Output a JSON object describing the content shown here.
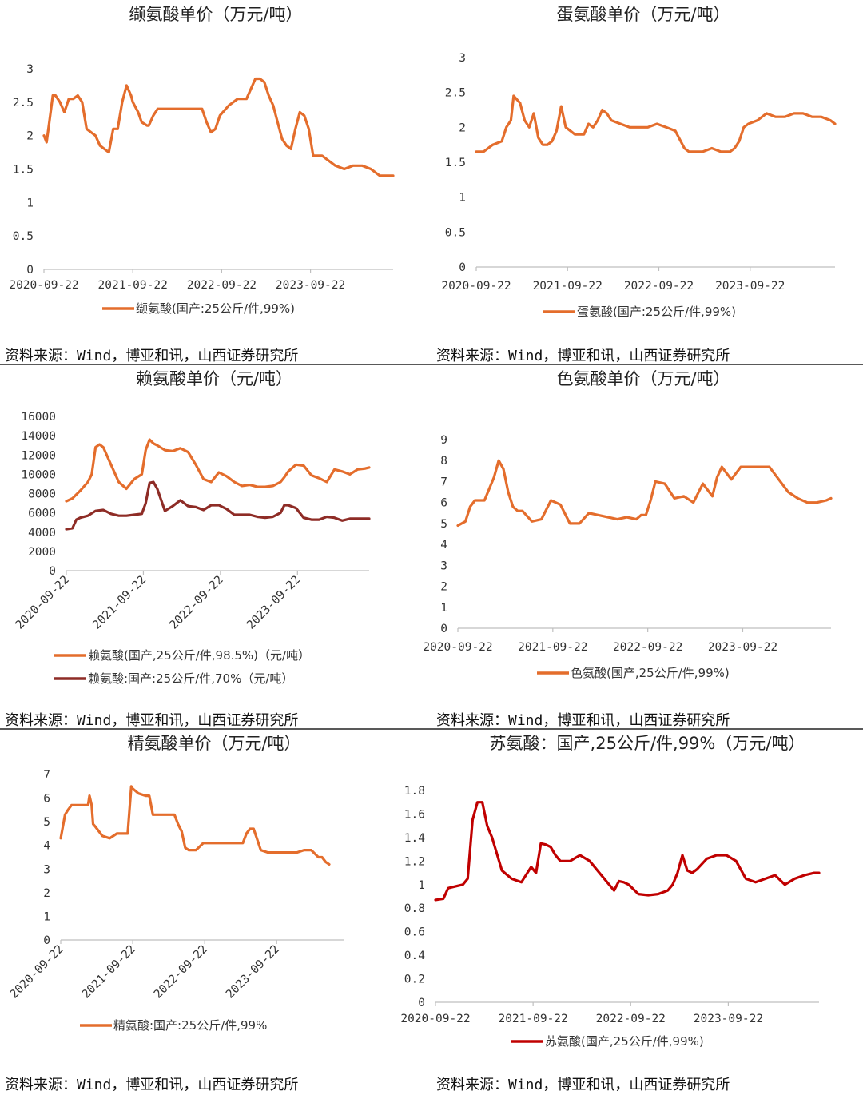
{
  "source_text": "资料来源：Wind，博亚和讯，山西证券研究所",
  "colors": {
    "orange": "#E46D2C",
    "darkred": "#8E2C26",
    "red": "#C00000"
  },
  "chart_data": [
    {
      "id": "valine",
      "type": "line",
      "title": "缬氨酸单价（万元/吨）",
      "xlabel": "",
      "ylabel": "",
      "x_ticks": [
        "2020-09-22",
        "2021-09-22",
        "2022-09-22",
        "2023-09-22"
      ],
      "y_ticks": [
        "0",
        "0.5",
        "1",
        "1.5",
        "2",
        "2.5",
        "3"
      ],
      "ylim": [
        0,
        3
      ],
      "x_range": [
        2020.72,
        2024.65
      ],
      "legend_placement": "bottom",
      "grid": false,
      "series": [
        {
          "name": "缬氨酸(国产:25公斤/件,99%)",
          "color": "#E46D2C",
          "x": [
            2020.72,
            2020.75,
            2020.78,
            2020.82,
            2020.85,
            2020.9,
            2020.95,
            2021.0,
            2021.05,
            2021.1,
            2021.15,
            2021.2,
            2021.25,
            2021.3,
            2021.35,
            2021.4,
            2021.45,
            2021.5,
            2021.55,
            2021.6,
            2021.65,
            2021.7,
            2021.72,
            2021.78,
            2021.82,
            2021.88,
            2021.9,
            2021.95,
            2022.0,
            2022.05,
            2022.1,
            2022.15,
            2022.2,
            2022.3,
            2022.4,
            2022.5,
            2022.55,
            2022.6,
            2022.65,
            2022.7,
            2022.8,
            2022.9,
            2023.0,
            2023.1,
            2023.15,
            2023.2,
            2023.25,
            2023.3,
            2023.35,
            2023.4,
            2023.45,
            2023.5,
            2023.55,
            2023.6,
            2023.65,
            2023.7,
            2023.75,
            2023.8,
            2023.85,
            2023.9,
            2024.0,
            2024.1,
            2024.2,
            2024.3,
            2024.4,
            2024.5,
            2024.65
          ],
          "y": [
            2.0,
            1.9,
            2.2,
            2.6,
            2.6,
            2.5,
            2.35,
            2.55,
            2.55,
            2.6,
            2.5,
            2.1,
            2.05,
            2.0,
            1.85,
            1.8,
            1.75,
            2.1,
            2.1,
            2.5,
            2.75,
            2.6,
            2.5,
            2.35,
            2.2,
            2.15,
            2.15,
            2.3,
            2.4,
            2.4,
            2.4,
            2.4,
            2.4,
            2.4,
            2.4,
            2.4,
            2.2,
            2.05,
            2.1,
            2.3,
            2.45,
            2.55,
            2.55,
            2.85,
            2.85,
            2.8,
            2.6,
            2.45,
            2.2,
            1.95,
            1.85,
            1.8,
            2.1,
            2.35,
            2.3,
            2.1,
            1.7,
            1.7,
            1.7,
            1.65,
            1.55,
            1.5,
            1.55,
            1.55,
            1.5,
            1.4,
            1.4
          ]
        }
      ]
    },
    {
      "id": "methionine",
      "type": "line",
      "title": "蛋氨酸单价（万元/吨）",
      "xlabel": "",
      "ylabel": "",
      "x_ticks": [
        "2020-09-22",
        "2021-09-22",
        "2022-09-22",
        "2023-09-22"
      ],
      "y_ticks": [
        "0",
        "0.5",
        "1",
        "1.5",
        "2",
        "2.5",
        "3"
      ],
      "ylim": [
        0,
        3
      ],
      "x_range": [
        2020.72,
        2024.65
      ],
      "legend_placement": "bottom",
      "grid": false,
      "series": [
        {
          "name": "蛋氨酸(国产:25公斤/件,99%)",
          "color": "#E46D2C",
          "x": [
            2020.72,
            2020.8,
            2020.9,
            2021.0,
            2021.05,
            2021.1,
            2021.13,
            2021.2,
            2021.25,
            2021.3,
            2021.35,
            2021.4,
            2021.45,
            2021.5,
            2021.55,
            2021.6,
            2021.65,
            2021.7,
            2021.75,
            2021.8,
            2021.85,
            2021.9,
            2021.95,
            2022.0,
            2022.05,
            2022.1,
            2022.15,
            2022.2,
            2022.3,
            2022.4,
            2022.5,
            2022.6,
            2022.7,
            2022.8,
            2022.9,
            2023.0,
            2023.05,
            2023.1,
            2023.2,
            2023.3,
            2023.4,
            2023.5,
            2023.55,
            2023.6,
            2023.65,
            2023.7,
            2023.8,
            2023.9,
            2024.0,
            2024.1,
            2024.2,
            2024.3,
            2024.4,
            2024.5,
            2024.6,
            2024.65
          ],
          "y": [
            1.65,
            1.65,
            1.75,
            1.8,
            2.0,
            2.1,
            2.45,
            2.35,
            2.1,
            2.0,
            2.2,
            1.85,
            1.75,
            1.75,
            1.8,
            1.95,
            2.3,
            2.0,
            1.95,
            1.9,
            1.9,
            1.9,
            2.05,
            2.0,
            2.1,
            2.25,
            2.2,
            2.1,
            2.05,
            2.0,
            2.0,
            2.0,
            2.05,
            2.0,
            1.95,
            1.7,
            1.65,
            1.65,
            1.65,
            1.7,
            1.65,
            1.65,
            1.7,
            1.8,
            2.0,
            2.05,
            2.1,
            2.2,
            2.15,
            2.15,
            2.2,
            2.2,
            2.15,
            2.15,
            2.1,
            2.05
          ]
        }
      ]
    },
    {
      "id": "lysine",
      "type": "line",
      "title": "赖氨酸单价（元/吨）",
      "xlabel": "",
      "ylabel": "",
      "x_ticks": [
        "2020-09-22",
        "2021-09-22",
        "2022-09-22",
        "2023-09-22"
      ],
      "y_ticks": [
        "0",
        "2000",
        "4000",
        "6000",
        "8000",
        "10000",
        "12000",
        "14000",
        "16000"
      ],
      "ylim": [
        0,
        16000
      ],
      "x_range": [
        2020.72,
        2024.65
      ],
      "legend_placement": "bottom",
      "grid": false,
      "series": [
        {
          "name": "赖氨酸(国产,25公斤/件,98.5%)（元/吨）",
          "color": "#E46D2C",
          "x": [
            2020.72,
            2020.8,
            2020.9,
            2021.0,
            2021.05,
            2021.1,
            2021.15,
            2021.2,
            2021.3,
            2021.4,
            2021.5,
            2021.6,
            2021.7,
            2021.75,
            2021.8,
            2021.85,
            2021.9,
            2022.0,
            2022.1,
            2022.2,
            2022.3,
            2022.4,
            2022.5,
            2022.6,
            2022.7,
            2022.8,
            2022.9,
            2023.0,
            2023.1,
            2023.2,
            2023.3,
            2023.4,
            2023.5,
            2023.55,
            2023.6,
            2023.7,
            2023.8,
            2023.9,
            2024.0,
            2024.1,
            2024.2,
            2024.3,
            2024.4,
            2024.5,
            2024.6,
            2024.65
          ],
          "y": [
            7200,
            7500,
            8300,
            9200,
            10000,
            12800,
            13100,
            12800,
            11000,
            9200,
            8500,
            9500,
            10000,
            12500,
            13600,
            13200,
            13000,
            12500,
            12400,
            12700,
            12300,
            11000,
            9500,
            9200,
            10200,
            9800,
            9200,
            8800,
            8900,
            8700,
            8700,
            8800,
            9200,
            9700,
            10300,
            11000,
            10900,
            9900,
            9600,
            9200,
            10500,
            10300,
            10000,
            10500,
            10600,
            10700
          ]
        },
        {
          "name": "赖氨酸:国产:25公斤/件,70%（元/吨）",
          "color": "#8E2C26",
          "x": [
            2020.72,
            2020.8,
            2020.85,
            2020.9,
            2021.0,
            2021.1,
            2021.2,
            2021.3,
            2021.4,
            2021.5,
            2021.6,
            2021.7,
            2021.75,
            2021.8,
            2021.85,
            2021.9,
            2022.0,
            2022.1,
            2022.2,
            2022.3,
            2022.4,
            2022.5,
            2022.6,
            2022.7,
            2022.8,
            2022.9,
            2023.0,
            2023.1,
            2023.2,
            2023.3,
            2023.4,
            2023.5,
            2023.55,
            2023.6,
            2023.7,
            2023.8,
            2023.9,
            2024.0,
            2024.1,
            2024.2,
            2024.3,
            2024.4,
            2024.5,
            2024.65
          ],
          "y": [
            4300,
            4400,
            5300,
            5500,
            5700,
            6200,
            6300,
            5900,
            5700,
            5700,
            5800,
            5900,
            7000,
            9100,
            9200,
            8500,
            6200,
            6700,
            7300,
            6700,
            6600,
            6300,
            6800,
            6800,
            6400,
            5800,
            5800,
            5800,
            5600,
            5500,
            5600,
            6000,
            6800,
            6800,
            6500,
            5500,
            5300,
            5300,
            5600,
            5500,
            5200,
            5400,
            5400,
            5400
          ]
        }
      ]
    },
    {
      "id": "tryptophan",
      "type": "line",
      "title": "色氨酸单价（万元/吨）",
      "xlabel": "",
      "ylabel": "",
      "x_ticks": [
        "2020-09-22",
        "2021-09-22",
        "2022-09-22",
        "2023-09-22"
      ],
      "y_ticks": [
        "0",
        "1",
        "2",
        "3",
        "4",
        "5",
        "6",
        "7",
        "8",
        "9"
      ],
      "ylim": [
        0,
        9
      ],
      "x_range": [
        2020.72,
        2024.65
      ],
      "legend_placement": "bottom",
      "grid": false,
      "series": [
        {
          "name": "色氨酸(国产,25公斤/件,99%)",
          "color": "#E46D2C",
          "x": [
            2020.72,
            2020.8,
            2020.85,
            2020.9,
            2021.0,
            2021.1,
            2021.15,
            2021.2,
            2021.25,
            2021.3,
            2021.35,
            2021.4,
            2021.5,
            2021.6,
            2021.7,
            2021.8,
            2021.9,
            2022.0,
            2022.1,
            2022.2,
            2022.3,
            2022.4,
            2022.5,
            2022.6,
            2022.65,
            2022.7,
            2022.75,
            2022.8,
            2022.9,
            2023.0,
            2023.1,
            2023.2,
            2023.3,
            2023.4,
            2023.45,
            2023.5,
            2023.6,
            2023.7,
            2023.8,
            2023.9,
            2024.0,
            2024.1,
            2024.2,
            2024.3,
            2024.4,
            2024.5,
            2024.6,
            2024.65
          ],
          "y": [
            4.9,
            5.1,
            5.8,
            6.1,
            6.1,
            7.2,
            8.0,
            7.6,
            6.5,
            5.8,
            5.6,
            5.6,
            5.1,
            5.2,
            6.1,
            5.9,
            5.0,
            5.0,
            5.5,
            5.4,
            5.3,
            5.2,
            5.3,
            5.2,
            5.4,
            5.4,
            6.1,
            7.0,
            6.9,
            6.2,
            6.3,
            6.0,
            6.9,
            6.3,
            7.2,
            7.7,
            7.1,
            7.7,
            7.7,
            7.7,
            7.7,
            7.1,
            6.5,
            6.2,
            6.0,
            6.0,
            6.1,
            6.2
          ]
        }
      ]
    },
    {
      "id": "arginine",
      "type": "line",
      "title": "精氨酸单价（万元/吨）",
      "xlabel": "",
      "ylabel": "",
      "x_ticks": [
        "2020-09-22",
        "2021-09-22",
        "2022-09-22",
        "2023-09-22"
      ],
      "y_ticks": [
        "0",
        "1",
        "2",
        "3",
        "4",
        "5",
        "6",
        "7"
      ],
      "ylim": [
        0,
        7
      ],
      "x_range": [
        2020.72,
        2024.65
      ],
      "legend_placement": "bottom",
      "grid": false,
      "series": [
        {
          "name": "精氨酸:国产:25公斤/件,99%",
          "color": "#E46D2C",
          "x": [
            2020.72,
            2020.78,
            2020.82,
            2020.87,
            2020.95,
            2021.0,
            2021.05,
            2021.1,
            2021.12,
            2021.15,
            2021.17,
            2021.2,
            2021.3,
            2021.4,
            2021.5,
            2021.6,
            2021.65,
            2021.7,
            2021.72,
            2021.8,
            2021.9,
            2021.95,
            2022.0,
            2022.1,
            2022.2,
            2022.3,
            2022.35,
            2022.4,
            2022.45,
            2022.5,
            2022.6,
            2022.7,
            2022.8,
            2022.9,
            2023.0,
            2023.05,
            2023.1,
            2023.2,
            2023.25,
            2023.3,
            2023.35,
            2023.4,
            2023.5,
            2023.6,
            2023.7,
            2023.8,
            2023.9,
            2024.0,
            2024.1,
            2024.2,
            2024.3,
            2024.35,
            2024.4,
            2024.45
          ],
          "y": [
            4.3,
            5.3,
            5.5,
            5.7,
            5.7,
            5.7,
            5.7,
            5.7,
            6.1,
            5.7,
            4.9,
            4.8,
            4.4,
            4.3,
            4.5,
            4.5,
            4.5,
            6.5,
            6.4,
            6.2,
            6.1,
            6.1,
            5.3,
            5.3,
            5.3,
            5.3,
            4.9,
            4.6,
            3.9,
            3.8,
            3.8,
            4.1,
            4.1,
            4.1,
            4.1,
            4.1,
            4.1,
            4.1,
            4.1,
            4.5,
            4.7,
            4.7,
            3.8,
            3.7,
            3.7,
            3.7,
            3.7,
            3.7,
            3.8,
            3.8,
            3.5,
            3.5,
            3.3,
            3.2
          ]
        }
      ]
    },
    {
      "id": "threonine",
      "type": "line",
      "title": "苏氨酸：国产,25公斤/件,99%（万元/吨）",
      "xlabel": "",
      "ylabel": "",
      "x_ticks": [
        "2020-09-22",
        "2021-09-22",
        "2022-09-22",
        "2023-09-22"
      ],
      "y_ticks": [
        "0",
        "0.2",
        "0.4",
        "0.6",
        "0.8",
        "1",
        "1.2",
        "1.4",
        "1.6",
        "1.8"
      ],
      "ylim": [
        0,
        1.8
      ],
      "x_range": [
        2020.72,
        2024.65
      ],
      "legend_placement": "bottom",
      "grid": false,
      "series": [
        {
          "name": "苏氨酸(国产,25公斤/件,99%)",
          "color": "#C00000",
          "x": [
            2020.72,
            2020.8,
            2020.85,
            2020.9,
            2021.0,
            2021.05,
            2021.1,
            2021.15,
            2021.2,
            2021.25,
            2021.3,
            2021.4,
            2021.5,
            2021.6,
            2021.7,
            2021.75,
            2021.8,
            2021.85,
            2021.9,
            2021.95,
            2022.0,
            2022.1,
            2022.2,
            2022.3,
            2022.4,
            2022.5,
            2022.55,
            2022.6,
            2022.65,
            2022.7,
            2022.8,
            2022.9,
            2023.0,
            2023.1,
            2023.15,
            2023.2,
            2023.25,
            2023.3,
            2023.35,
            2023.4,
            2023.5,
            2023.6,
            2023.7,
            2023.8,
            2023.9,
            2024.0,
            2024.1,
            2024.2,
            2024.3,
            2024.4,
            2024.5,
            2024.6,
            2024.65
          ],
          "y": [
            0.87,
            0.88,
            0.97,
            0.98,
            1.0,
            1.05,
            1.55,
            1.7,
            1.7,
            1.5,
            1.4,
            1.12,
            1.05,
            1.02,
            1.15,
            1.1,
            1.35,
            1.34,
            1.32,
            1.25,
            1.2,
            1.2,
            1.25,
            1.2,
            1.1,
            1.0,
            0.95,
            1.03,
            1.02,
            1.0,
            0.92,
            0.91,
            0.92,
            0.95,
            1.0,
            1.1,
            1.25,
            1.12,
            1.1,
            1.13,
            1.22,
            1.25,
            1.25,
            1.2,
            1.05,
            1.02,
            1.05,
            1.08,
            1.0,
            1.05,
            1.08,
            1.1,
            1.1
          ]
        }
      ]
    }
  ]
}
